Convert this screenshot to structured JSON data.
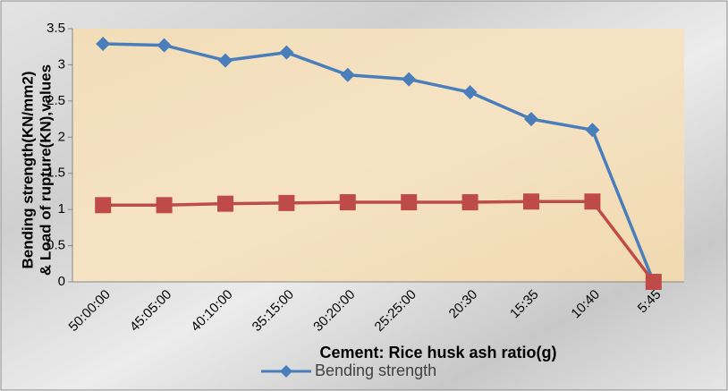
{
  "chart_data": {
    "type": "line",
    "y_label": [
      "Bending strength(KN/mm2)",
      "& Load of rupture(KN),values"
    ],
    "x_label": "Cement: Rice husk ash ratio(g)",
    "categories": [
      "50:00:00",
      "45:05:00",
      "40:10:00",
      "35:15:00",
      "30:20:00",
      "25:25:00",
      "20:30",
      "15:35",
      "10:40",
      "5:45"
    ],
    "series": [
      {
        "name": "Bending strength",
        "color": "#4a7ebb",
        "marker": "diamond",
        "values": [
          3.29,
          3.27,
          3.06,
          3.17,
          2.86,
          2.8,
          2.62,
          2.25,
          2.1,
          0
        ]
      },
      {
        "color": "#be4b48",
        "marker": "square",
        "values": [
          1.06,
          1.06,
          1.08,
          1.09,
          1.1,
          1.1,
          1.1,
          1.11,
          1.11,
          0
        ]
      }
    ],
    "ylim": [
      0,
      3.5
    ],
    "yticks": [
      0,
      0.5,
      1,
      1.5,
      2,
      2.5,
      3,
      3.5
    ],
    "legend": "bottom"
  }
}
